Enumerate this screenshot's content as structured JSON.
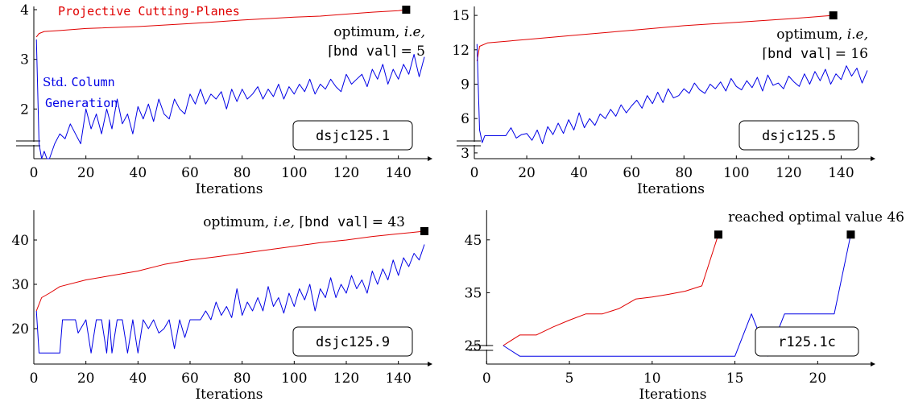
{
  "legend": {
    "red_label": "Projective Cutting-Planes",
    "blue_label_std": "Std.",
    "blue_label_column": "Column",
    "blue_label_generation": "Generation"
  },
  "colors": {
    "red": "#e00000",
    "blue": "#0000e6"
  },
  "chart_data": [
    {
      "type": "line",
      "instance": "dsjc125.1",
      "xlabel": "Iterations",
      "xlim": [
        0,
        150
      ],
      "ylim": [
        1,
        4
      ],
      "xticks": [
        0,
        20,
        40,
        60,
        80,
        100,
        120,
        140
      ],
      "yticks": [
        2,
        3,
        4
      ],
      "annotation": {
        "optimum_text": "optimum,",
        "ie_text": "i.e,",
        "bnd_text": "bnd val",
        "eq_text": "= 5",
        "marker_x": 143,
        "marker_y": 4.0
      },
      "series": [
        {
          "color": "red",
          "x": [
            1,
            2,
            4,
            10,
            20,
            40,
            60,
            80,
            100,
            110,
            120,
            130,
            140,
            143
          ],
          "y": [
            3.45,
            3.52,
            3.56,
            3.58,
            3.62,
            3.66,
            3.72,
            3.79,
            3.85,
            3.87,
            3.91,
            3.95,
            3.98,
            4.0
          ]
        },
        {
          "color": "blue",
          "x": [
            1,
            2,
            3,
            4,
            5,
            6,
            8,
            10,
            12,
            14,
            16,
            18,
            20,
            22,
            24,
            26,
            28,
            30,
            32,
            34,
            36,
            38,
            40,
            42,
            44,
            46,
            48,
            50,
            52,
            54,
            56,
            58,
            60,
            62,
            64,
            66,
            68,
            70,
            72,
            74,
            76,
            78,
            80,
            82,
            84,
            86,
            88,
            90,
            92,
            94,
            96,
            98,
            100,
            102,
            104,
            106,
            108,
            110,
            112,
            114,
            116,
            118,
            120,
            122,
            124,
            126,
            128,
            130,
            132,
            134,
            136,
            138,
            140,
            142,
            144,
            146,
            148,
            150
          ],
          "y": [
            3.4,
            1.3,
            1.0,
            1.15,
            1.0,
            1.0,
            1.3,
            1.5,
            1.4,
            1.7,
            1.5,
            1.3,
            2.0,
            1.6,
            1.9,
            1.5,
            2.0,
            1.6,
            2.2,
            1.7,
            1.9,
            1.5,
            2.05,
            1.8,
            2.1,
            1.75,
            2.2,
            1.9,
            1.8,
            2.2,
            2.0,
            1.9,
            2.3,
            2.1,
            2.4,
            2.1,
            2.3,
            2.2,
            2.35,
            2.0,
            2.4,
            2.15,
            2.4,
            2.2,
            2.3,
            2.45,
            2.2,
            2.4,
            2.25,
            2.5,
            2.2,
            2.45,
            2.3,
            2.5,
            2.35,
            2.6,
            2.3,
            2.5,
            2.4,
            2.6,
            2.45,
            2.35,
            2.7,
            2.5,
            2.6,
            2.7,
            2.45,
            2.8,
            2.6,
            2.9,
            2.5,
            2.8,
            2.6,
            2.9,
            2.7,
            3.1,
            2.65,
            3.05
          ]
        }
      ]
    },
    {
      "type": "line",
      "instance": "dsjc125.5",
      "xlabel": "Iterations",
      "xlim": [
        0,
        150
      ],
      "ylim": [
        2.5,
        15.5
      ],
      "xticks": [
        0,
        20,
        40,
        60,
        80,
        100,
        120,
        140
      ],
      "yticks": [
        3,
        6,
        9,
        12,
        15
      ],
      "annotation": {
        "optimum_text": "optimum,",
        "ie_text": "i.e,",
        "bnd_text": "bnd val",
        "eq_text": "= 16",
        "marker_x": 137,
        "marker_y": 15.0
      },
      "series": [
        {
          "color": "red",
          "x": [
            1,
            2,
            5,
            20,
            40,
            60,
            80,
            100,
            120,
            137
          ],
          "y": [
            11.0,
            12.3,
            12.6,
            12.9,
            13.3,
            13.7,
            14.1,
            14.4,
            14.7,
            15.0
          ]
        },
        {
          "color": "blue",
          "x": [
            1,
            2,
            3,
            4,
            6,
            8,
            10,
            12,
            14,
            16,
            18,
            20,
            22,
            24,
            26,
            28,
            30,
            32,
            34,
            36,
            38,
            40,
            42,
            44,
            46,
            48,
            50,
            52,
            54,
            56,
            58,
            60,
            62,
            64,
            66,
            68,
            70,
            72,
            74,
            76,
            78,
            80,
            82,
            84,
            86,
            88,
            90,
            92,
            94,
            96,
            98,
            100,
            102,
            104,
            106,
            108,
            110,
            112,
            114,
            116,
            118,
            120,
            122,
            124,
            126,
            128,
            130,
            132,
            134,
            136,
            138,
            140,
            142,
            144,
            146,
            148,
            150
          ],
          "y": [
            12.5,
            5.0,
            3.9,
            4.5,
            4.5,
            4.5,
            4.5,
            4.5,
            5.2,
            4.3,
            4.6,
            4.7,
            4.1,
            5.0,
            3.8,
            5.3,
            4.6,
            5.6,
            4.7,
            5.9,
            5.0,
            6.5,
            5.2,
            6.0,
            5.4,
            6.4,
            6.0,
            6.8,
            6.2,
            7.2,
            6.5,
            7.1,
            7.6,
            6.9,
            8.0,
            7.3,
            8.3,
            7.4,
            8.6,
            7.8,
            8.0,
            8.6,
            8.2,
            9.1,
            8.5,
            8.2,
            9.0,
            8.6,
            9.2,
            8.4,
            9.5,
            8.8,
            8.5,
            9.3,
            8.7,
            9.6,
            8.4,
            9.8,
            8.9,
            9.1,
            8.6,
            9.7,
            9.2,
            8.8,
            9.9,
            9.0,
            10.1,
            9.3,
            10.3,
            9.0,
            9.9,
            9.4,
            10.6,
            9.7,
            10.4,
            9.1,
            10.2
          ]
        }
      ]
    },
    {
      "type": "line",
      "instance": "dsjc125.9",
      "xlabel": "Iterations",
      "xlim": [
        0,
        150
      ],
      "ylim": [
        12,
        46
      ],
      "xticks": [
        0,
        20,
        40,
        60,
        80,
        100,
        120,
        140
      ],
      "yticks": [
        20,
        30,
        40
      ],
      "annotation": {
        "optimum_text": "optimum,",
        "ie_text": "i.e,",
        "bnd_text": "bnd val",
        "eq_text": "= 43",
        "marker_x": 150,
        "marker_y": 42
      },
      "series": [
        {
          "color": "red",
          "x": [
            1,
            3,
            6,
            10,
            20,
            30,
            40,
            50,
            60,
            70,
            80,
            90,
            100,
            110,
            120,
            130,
            140,
            150
          ],
          "y": [
            24,
            27,
            28,
            29.5,
            31,
            32,
            33,
            34.5,
            35.5,
            36.2,
            37,
            37.8,
            38.6,
            39.4,
            40,
            40.8,
            41.4,
            42
          ]
        },
        {
          "color": "blue",
          "x": [
            1,
            2,
            4,
            6,
            8,
            10,
            11,
            14,
            16,
            17,
            20,
            22,
            24,
            26,
            28,
            29,
            30,
            32,
            34,
            36,
            38,
            40,
            42,
            44,
            46,
            48,
            50,
            52,
            54,
            56,
            58,
            60,
            62,
            64,
            66,
            68,
            70,
            72,
            74,
            76,
            78,
            80,
            82,
            84,
            86,
            88,
            90,
            92,
            94,
            96,
            98,
            100,
            102,
            104,
            106,
            108,
            110,
            112,
            114,
            116,
            118,
            120,
            122,
            124,
            126,
            128,
            130,
            132,
            134,
            136,
            138,
            140,
            142,
            144,
            146,
            148,
            150
          ],
          "y": [
            24,
            14.5,
            14.5,
            14.5,
            14.5,
            14.5,
            22,
            22,
            22,
            19,
            22,
            14.5,
            22,
            22,
            14.5,
            22,
            14.5,
            22,
            22,
            14.5,
            22,
            14.5,
            22,
            20,
            22,
            19,
            20,
            22,
            15.5,
            22,
            18,
            22,
            22,
            22,
            24,
            22,
            26,
            23,
            25,
            22.5,
            29,
            23,
            26,
            24,
            27,
            24,
            29.5,
            25,
            27,
            23.5,
            28,
            25,
            29,
            26.5,
            30,
            24,
            29,
            27,
            31.5,
            27,
            30,
            28,
            32,
            29,
            31,
            28,
            33,
            30,
            33.5,
            31,
            35.5,
            32,
            36,
            34,
            37,
            35.5,
            39
          ]
        }
      ]
    },
    {
      "type": "line",
      "instance": "r125.1c",
      "xlabel": "Iterations",
      "xlim": [
        -0.5,
        23
      ],
      "ylim": [
        21.5,
        50
      ],
      "xticks": [
        0,
        5,
        10,
        15,
        20
      ],
      "yticks": [
        25,
        35,
        45
      ],
      "annotation": {
        "reached_text": "reached optimal value 46",
        "marker_x_red": 14,
        "marker_x_blue": 22,
        "marker_y": 46
      },
      "series": [
        {
          "color": "red",
          "x": [
            1,
            2,
            3,
            4,
            5,
            6,
            7,
            8,
            9,
            10,
            11,
            12,
            13,
            14
          ],
          "y": [
            25,
            27,
            27,
            28.5,
            29.8,
            31,
            31,
            32,
            33.8,
            34.2,
            34.7,
            35.3,
            36.3,
            46
          ]
        },
        {
          "color": "blue",
          "x": [
            1,
            2,
            3,
            4,
            5,
            6,
            7,
            8,
            9,
            10,
            11,
            12,
            13,
            14,
            15,
            16,
            17,
            18,
            19,
            20,
            21,
            22
          ],
          "y": [
            25,
            23,
            23,
            23,
            23,
            23,
            23,
            23,
            23,
            23,
            23,
            23,
            23,
            23,
            23,
            31,
            23,
            31,
            31,
            31,
            31,
            46
          ]
        }
      ]
    }
  ]
}
